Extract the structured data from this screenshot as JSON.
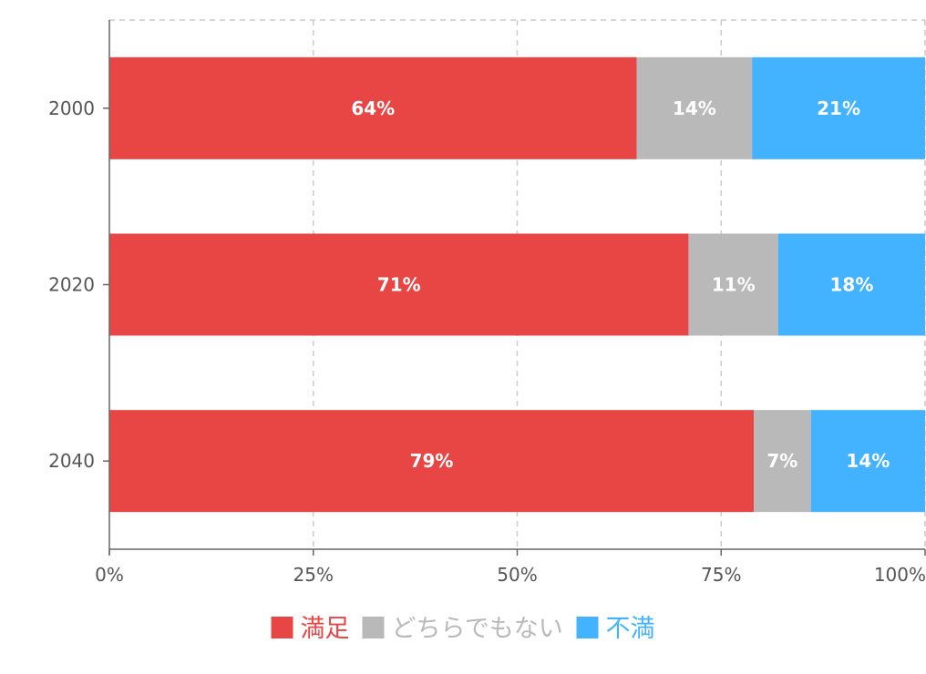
{
  "chart_data": {
    "type": "bar",
    "orientation": "horizontal",
    "stacked": "percent",
    "categories": [
      "2000",
      "2020",
      "2040"
    ],
    "series": [
      {
        "name": "満足",
        "values": [
          64,
          71,
          79
        ],
        "labels": [
          "64%",
          "71%",
          "79%"
        ],
        "color": "#e84545"
      },
      {
        "name": "どちらでもない",
        "values": [
          14,
          11,
          7
        ],
        "labels": [
          "14%",
          "11%",
          "7%"
        ],
        "color": "#b9b9b9"
      },
      {
        "name": "不満",
        "values": [
          21,
          18,
          14
        ],
        "labels": [
          "21%",
          "18%",
          "14%"
        ],
        "color": "#43b2ff"
      }
    ],
    "x_ticks": [
      "0%",
      "25%",
      "50%",
      "75%",
      "100%"
    ],
    "xlim": [
      0,
      100
    ],
    "grid": true,
    "legend_position": "bottom",
    "axis_color": "#666666",
    "grid_color": "#cccccc"
  }
}
